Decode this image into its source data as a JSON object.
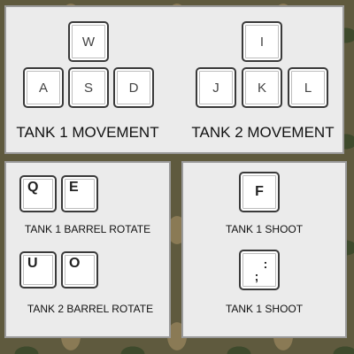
{
  "movement": {
    "tank1_keys": {
      "up": "W",
      "left": "A",
      "down": "S",
      "right": "D"
    },
    "tank2_keys": {
      "up": "I",
      "left": "J",
      "down": "K",
      "right": "L"
    },
    "tank1_label": "TANK 1 MOVEMENT",
    "tank2_label": "TANK 2 MOVEMENT"
  },
  "barrel": {
    "tank1_keys": [
      "Q",
      "E"
    ],
    "tank1_label": "TANK 1 BARREL ROTATE",
    "tank2_keys": [
      "U",
      "O"
    ],
    "tank2_label": "TANK 2 BARREL ROTATE"
  },
  "shoot": {
    "first_key": "F",
    "first_label": "TANK 1 SHOOT",
    "second_key_top": ":",
    "second_key_bottom": ";",
    "second_label": "TANK 1 SHOOT"
  },
  "colors": {
    "panel_bg": "#ebebeb",
    "panel_border": "#9a9a9a",
    "key_bg": "#ffffff",
    "key_border": "#3a3a3a",
    "camo_base": "#5f5a3e"
  }
}
